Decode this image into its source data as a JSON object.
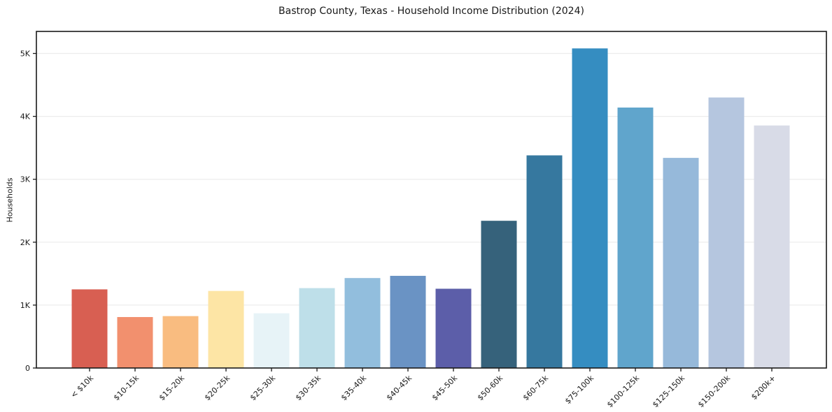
{
  "chart_data": {
    "type": "bar",
    "title": "Bastrop County, Texas - Household Income Distribution (2024)",
    "xlabel": "",
    "ylabel": "Households",
    "categories": [
      "< $10k",
      "$10-15k",
      "$15-20k",
      "$20-25k",
      "$25-30k",
      "$30-35k",
      "$35-40k",
      "$40-45k",
      "$45-50k",
      "$50-60k",
      "$60-75k",
      "$75-100k",
      "$100-125k",
      "$125-150k",
      "$150-200k",
      "$200k+"
    ],
    "values": [
      1250,
      810,
      825,
      1225,
      870,
      1270,
      1430,
      1465,
      1260,
      2340,
      3380,
      5080,
      4140,
      3340,
      4300,
      3855
    ],
    "bar_colors": [
      "#d85f52",
      "#f2906e",
      "#f9bc80",
      "#fde5a5",
      "#e7f3f7",
      "#bedfe9",
      "#92bedd",
      "#6a93c4",
      "#5c5ea9",
      "#36627b",
      "#36789f",
      "#358dc1",
      "#60a5cc",
      "#96b9da",
      "#b5c6df",
      "#d8dbe7"
    ],
    "ylim": [
      0,
      5350
    ],
    "yticks": [
      {
        "value": 0,
        "label": "0"
      },
      {
        "value": 1000,
        "label": "1K"
      },
      {
        "value": 2000,
        "label": "2K"
      },
      {
        "value": 3000,
        "label": "3K"
      },
      {
        "value": 4000,
        "label": "4K"
      },
      {
        "value": 5000,
        "label": "5K"
      }
    ],
    "grid": "horizontal",
    "legend": "none",
    "background_color": "#ffffff",
    "grid_color": "#ececec",
    "spine_color": "#1a1a1a",
    "x_tick_rotation_deg": 45
  }
}
